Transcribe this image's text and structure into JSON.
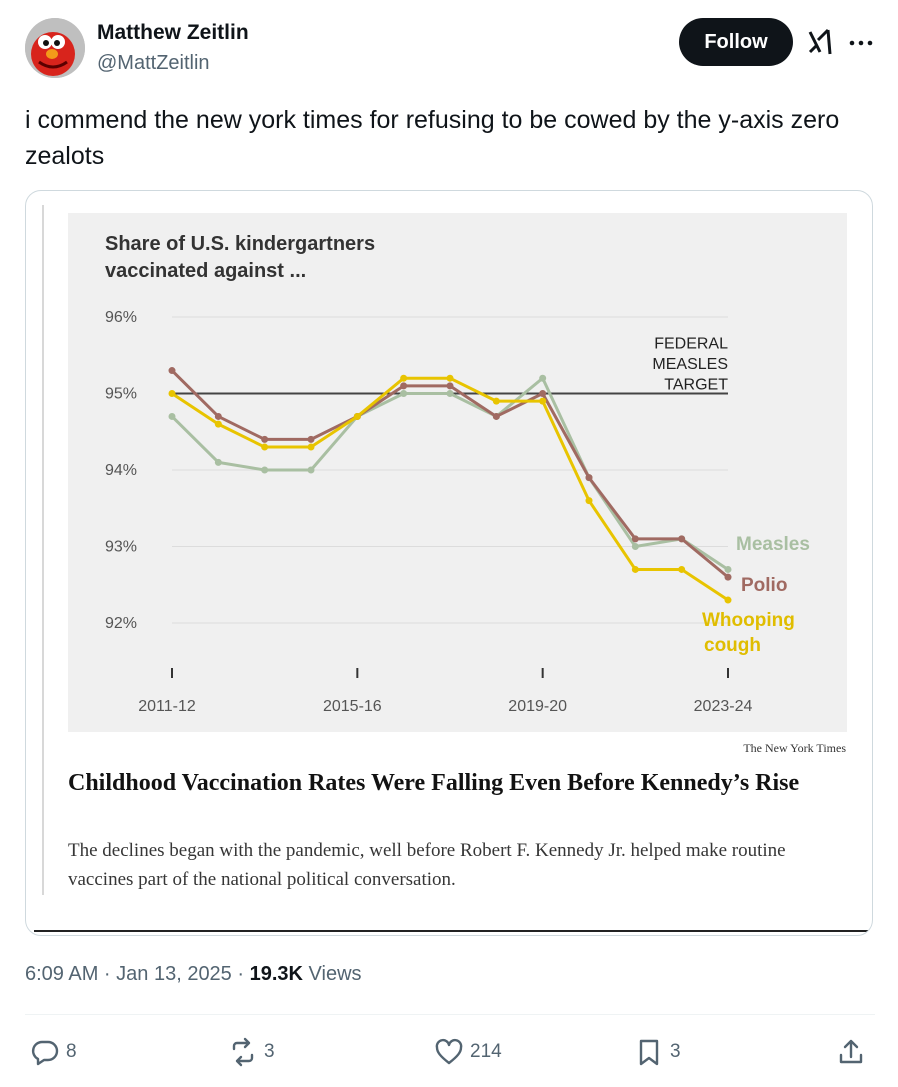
{
  "author": {
    "name": "Matthew Zeitlin",
    "handle": "@MattZeitlin"
  },
  "follow_label": "Follow",
  "tweet_text": "i commend the new york times for refusing to be cowed by the y-axis zero zealots",
  "card": {
    "credit": "The New York Times",
    "headline": "Childhood Vaccination Rates Were Falling Even Before Kennedy’s Rise",
    "subhead": "The declines began with the pandemic, well before Robert F. Kennedy Jr. helped make routine vaccines part of the national political conversation."
  },
  "chart_data": {
    "type": "line",
    "title_line1": "Share of U.S. kindergartners",
    "title_line2": "vaccinated against ...",
    "x": [
      "2011-12",
      "2012-13",
      "2013-14",
      "2014-15",
      "2015-16",
      "2016-17",
      "2017-18",
      "2018-19",
      "2019-20",
      "2020-21",
      "2021-22",
      "2022-23",
      "2023-24"
    ],
    "x_ticks": [
      "2011-12",
      "2015-16",
      "2019-20",
      "2023-24"
    ],
    "y_ticks": [
      "96%",
      "95%",
      "94%",
      "93%",
      "92%"
    ],
    "ylim": [
      91.4,
      96.3
    ],
    "reference_line": {
      "value": 95,
      "label_lines": [
        "FEDERAL",
        "MEASLES",
        "TARGET"
      ]
    },
    "series": [
      {
        "name": "Measles",
        "color": "#a9bfa2",
        "values": [
          94.7,
          94.1,
          94.0,
          94.0,
          94.7,
          95.0,
          95.0,
          94.7,
          95.2,
          93.9,
          93.0,
          93.1,
          92.7
        ]
      },
      {
        "name": "Polio",
        "color": "#a06a62",
        "values": [
          95.3,
          94.7,
          94.4,
          94.4,
          94.7,
          95.1,
          95.1,
          94.7,
          95.0,
          93.9,
          93.1,
          93.1,
          92.6
        ]
      },
      {
        "name": "Whooping",
        "name_line2": "cough",
        "color": "#e8c400",
        "values": [
          95.0,
          94.6,
          94.3,
          94.3,
          94.7,
          95.2,
          95.2,
          94.9,
          94.9,
          93.6,
          92.7,
          92.7,
          92.3
        ]
      }
    ]
  },
  "tweet_meta": {
    "time": "6:09 AM · Jan 13, 2025 · ",
    "views_count": "19.3K",
    "views_label": " Views"
  },
  "actions": {
    "replies": "8",
    "reposts": "3",
    "likes": "214",
    "bookmarks": "3"
  }
}
